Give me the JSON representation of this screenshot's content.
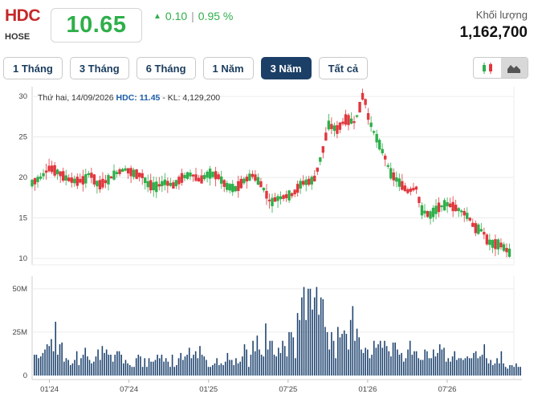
{
  "header": {
    "ticker": "HDC",
    "exchange": "HOSE",
    "price": "10.65",
    "change_arrow": "▲",
    "change_value": "0.10",
    "change_sep": "|",
    "change_pct": "0.95 %",
    "volume_label": "Khối lượng",
    "volume_value": "1,162,700"
  },
  "tabs": [
    {
      "label": "1 Tháng",
      "active": false
    },
    {
      "label": "3 Tháng",
      "active": false
    },
    {
      "label": "6 Tháng",
      "active": false
    },
    {
      "label": "1 Năm",
      "active": false
    },
    {
      "label": "3 Năm",
      "active": true
    },
    {
      "label": "Tất cả",
      "active": false
    }
  ],
  "chart_type_buttons": [
    {
      "icon": "candlestick-icon",
      "active": false
    },
    {
      "icon": "area-chart-icon",
      "active": true
    }
  ],
  "info_line": {
    "date": "Thứ hai, 14/09/2026",
    "ticker_label": "HDC:",
    "close": "11.45",
    "volume": "- KL: 4,129,200"
  },
  "colors": {
    "up": "#2eaf4a",
    "down": "#e0383e",
    "accent": "#1c3f67",
    "ticker": "#c62828",
    "volume_bar": "#1f4470"
  },
  "chart_data": [
    {
      "type": "candlestick",
      "ylim": [
        10,
        32
      ],
      "y_ticks": [
        "30",
        "25",
        "20",
        "15",
        "10"
      ],
      "y_tick_values": [
        30,
        25,
        20,
        15,
        10
      ],
      "x_ticks": [
        "01'24",
        "07'24",
        "01'25",
        "07'25",
        "01'26",
        "07'26"
      ],
      "x_tick_positions": [
        0.13,
        0.31,
        0.49,
        0.67,
        0.85,
        1.03
      ],
      "close_path": [
        [
          0.0,
          19.3
        ],
        [
          0.02,
          20.0
        ],
        [
          0.04,
          21.2
        ],
        [
          0.06,
          20.6
        ],
        [
          0.08,
          19.8
        ],
        [
          0.1,
          19.5
        ],
        [
          0.12,
          19.7
        ],
        [
          0.13,
          20.6
        ],
        [
          0.15,
          19.0
        ],
        [
          0.17,
          19.6
        ],
        [
          0.19,
          20.5
        ],
        [
          0.21,
          21.0
        ],
        [
          0.23,
          20.5
        ],
        [
          0.25,
          20.2
        ],
        [
          0.26,
          19.2
        ],
        [
          0.28,
          18.8
        ],
        [
          0.3,
          19.4
        ],
        [
          0.32,
          19.0
        ],
        [
          0.34,
          20.0
        ],
        [
          0.36,
          20.4
        ],
        [
          0.38,
          19.6
        ],
        [
          0.4,
          20.5
        ],
        [
          0.42,
          20.2
        ],
        [
          0.44,
          18.9
        ],
        [
          0.46,
          18.6
        ],
        [
          0.48,
          19.6
        ],
        [
          0.5,
          20.3
        ],
        [
          0.52,
          19.0
        ],
        [
          0.54,
          16.8
        ],
        [
          0.55,
          17.3
        ],
        [
          0.57,
          17.6
        ],
        [
          0.59,
          17.9
        ],
        [
          0.61,
          19.3
        ],
        [
          0.63,
          19.5
        ],
        [
          0.64,
          19.9
        ],
        [
          0.66,
          23.8
        ],
        [
          0.67,
          26.5
        ],
        [
          0.69,
          25.9
        ],
        [
          0.71,
          27.2
        ],
        [
          0.73,
          26.8
        ],
        [
          0.74,
          28.4
        ],
        [
          0.75,
          30.5
        ],
        [
          0.76,
          27.6
        ],
        [
          0.77,
          26.0
        ],
        [
          0.78,
          24.8
        ],
        [
          0.8,
          22.3
        ],
        [
          0.81,
          20.6
        ],
        [
          0.83,
          19.4
        ],
        [
          0.85,
          18.3
        ],
        [
          0.87,
          18.7
        ],
        [
          0.88,
          16.0
        ],
        [
          0.9,
          15.3
        ],
        [
          0.92,
          16.3
        ],
        [
          0.94,
          16.7
        ],
        [
          0.96,
          16.2
        ],
        [
          0.98,
          15.5
        ],
        [
          0.99,
          14.9
        ],
        [
          1.0,
          13.8
        ],
        [
          1.02,
          13.4
        ],
        [
          1.03,
          12.2
        ],
        [
          1.04,
          11.8
        ],
        [
          1.06,
          11.7
        ],
        [
          1.07,
          11.2
        ],
        [
          1.08,
          10.7
        ]
      ]
    },
    {
      "type": "bar",
      "title": "Khối lượng",
      "ylim": [
        0,
        55
      ],
      "y_ticks": [
        "50M",
        "25M",
        "0"
      ],
      "y_tick_values": [
        50,
        25,
        0
      ],
      "values_millions": [
        12,
        12,
        10,
        11,
        13,
        15,
        18,
        17,
        21,
        14,
        31,
        12,
        18,
        19,
        8,
        10,
        9,
        6,
        7,
        9,
        14,
        6,
        10,
        12,
        16,
        11,
        9,
        7,
        8,
        11,
        15,
        9,
        17,
        13,
        15,
        12,
        12,
        8,
        12,
        14,
        14,
        12,
        7,
        9,
        7,
        6,
        5,
        5,
        10,
        12,
        11,
        5,
        10,
        5,
        10,
        8,
        8,
        9,
        12,
        10,
        12,
        8,
        10,
        8,
        5,
        12,
        5,
        6,
        10,
        13,
        9,
        11,
        12,
        16,
        10,
        12,
        14,
        10,
        17,
        12,
        11,
        9,
        5,
        5,
        6,
        7,
        10,
        6,
        7,
        6,
        8,
        13,
        9,
        9,
        6,
        10,
        7,
        8,
        11,
        18,
        15,
        5,
        12,
        20,
        14,
        23,
        15,
        12,
        11,
        30,
        15,
        20,
        20,
        12,
        11,
        16,
        13,
        20,
        17,
        11,
        25,
        25,
        22,
        10,
        36,
        32,
        45,
        51,
        32,
        50,
        50,
        38,
        45,
        51,
        35,
        45,
        44,
        28,
        25,
        15,
        25,
        20,
        10,
        28,
        22,
        24,
        26,
        24,
        15,
        32,
        40,
        20,
        27,
        22,
        15,
        13,
        16,
        15,
        10,
        12,
        20,
        16,
        18,
        20,
        16,
        20,
        17,
        14,
        11,
        19,
        19,
        15,
        12,
        13,
        8,
        10,
        15,
        20,
        12,
        14,
        14,
        10,
        9,
        9,
        15,
        14,
        10,
        10,
        15,
        11,
        13,
        18,
        15,
        16,
        8,
        10,
        8,
        11,
        14,
        9,
        10,
        10,
        9,
        10,
        11,
        10,
        10,
        13,
        14,
        10,
        11,
        12,
        18,
        10,
        7,
        9,
        6,
        7,
        10,
        7,
        14,
        7,
        5,
        4,
        6,
        6,
        5,
        7,
        5,
        5
      ]
    }
  ]
}
